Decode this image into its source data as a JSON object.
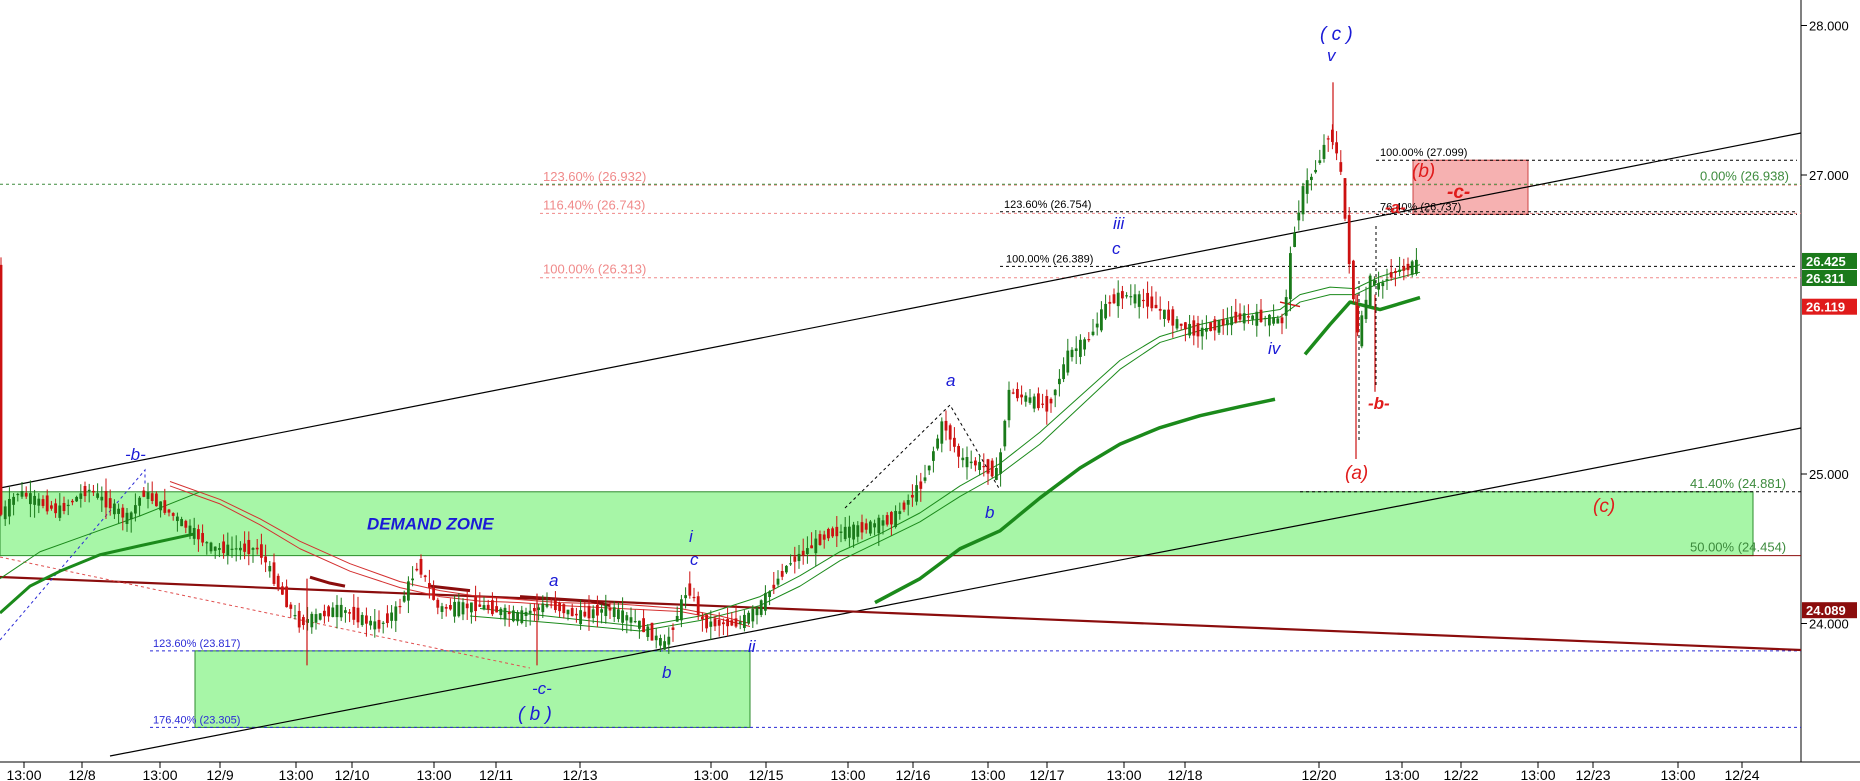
{
  "chart_data": {
    "type": "candlestick",
    "colors": {
      "up": "#1a7a1a",
      "down": "#cc1111",
      "blue_label": "#1a1ad6",
      "red_label": "#e01b1b",
      "fib_pink": "#f08a8a",
      "fib_green": "#3d8b3d",
      "zone_green": "#98f598",
      "zone_pink": "#f5a3a3",
      "ma_green": "#1b8a1b",
      "ma_red": "#d43030",
      "dark_red": "#8b0d0d"
    },
    "y_axis": {
      "ylim": [
        23.0,
        28.5
      ],
      "ticks": [
        {
          "value": 28.0,
          "label": "28.000"
        },
        {
          "value": 27.0,
          "label": "27.000"
        },
        {
          "value": 25.0,
          "label": "25.000"
        },
        {
          "value": 24.0,
          "label": "24.000"
        }
      ],
      "price_badges": [
        {
          "value": 26.425,
          "label": "26.425",
          "color": "#1b7a1b"
        },
        {
          "value": 26.311,
          "label": "26.311",
          "color": "#1b7a1b"
        },
        {
          "value": 26.119,
          "label": "26.119",
          "color": "#e01b1b"
        },
        {
          "value": 24.089,
          "label": "24.089",
          "color": "#8b0d0d"
        }
      ]
    },
    "x_axis": {
      "tick_labels": [
        "13:00",
        "12/8",
        "13:00",
        "12/9",
        "13:00",
        "12/10",
        "13:00",
        "12/11",
        "12/13",
        "13:00",
        "12/15",
        "13:00",
        "12/16",
        "13:00",
        "12/17",
        "13:00",
        "12/18",
        "12/20",
        "13:00",
        "12/22",
        "13:00",
        "12/23",
        "13:00",
        "12/24"
      ]
    },
    "zones": [
      {
        "label": "DEMAND ZONE",
        "from": 24.454,
        "to": 24.881
      },
      {
        "label": "",
        "from": 23.305,
        "to": 23.817
      },
      {
        "label": "",
        "from": 26.737,
        "to": 27.099
      }
    ],
    "fib_levels": [
      {
        "label": "123.60% (26.932)",
        "value": 26.932,
        "group": "pink"
      },
      {
        "label": "116.40% (26.743)",
        "value": 26.743,
        "group": "pink"
      },
      {
        "label": "100.00% (26.313)",
        "value": 26.313,
        "group": "pink"
      },
      {
        "label": "123.60% (26.754)",
        "value": 26.754,
        "group": "black"
      },
      {
        "label": "100.00% (26.389)",
        "value": 26.389,
        "group": "black"
      },
      {
        "label": "100.00% (27.099)",
        "value": 27.099,
        "group": "black"
      },
      {
        "label": "76.40% (26.737)",
        "value": 26.737,
        "group": "black"
      },
      {
        "label": "0.00% (26.938)",
        "value": 26.938,
        "group": "green"
      },
      {
        "label": "41.40% (24.881)",
        "value": 24.881,
        "group": "green"
      },
      {
        "label": "50.00% (24.454)",
        "value": 24.454,
        "group": "green"
      },
      {
        "label": "123.60% (23.817)",
        "value": 23.817,
        "group": "blue"
      },
      {
        "label": "176.40% (23.305)",
        "value": 23.305,
        "group": "blue"
      }
    ],
    "wave_labels": [
      {
        "text": "( c )",
        "color": "blue"
      },
      {
        "text": "v",
        "color": "blue"
      },
      {
        "text": "iii",
        "color": "blue"
      },
      {
        "text": "c",
        "color": "blue"
      },
      {
        "text": "iv",
        "color": "blue"
      },
      {
        "text": "a",
        "color": "blue"
      },
      {
        "text": "b",
        "color": "blue"
      },
      {
        "text": "-b-",
        "color": "blue"
      },
      {
        "text": "i",
        "color": "blue"
      },
      {
        "text": "c",
        "color": "blue"
      },
      {
        "text": "a",
        "color": "blue"
      },
      {
        "text": "ii",
        "color": "blue"
      },
      {
        "text": "b",
        "color": "blue"
      },
      {
        "text": "-c-",
        "color": "blue"
      },
      {
        "text": "( b )",
        "color": "blue"
      },
      {
        "text": "(b)",
        "color": "red"
      },
      {
        "text": "-c-",
        "color": "red"
      },
      {
        "text": "-a-",
        "color": "red"
      },
      {
        "text": "-b-",
        "color": "red"
      },
      {
        "text": "(a)",
        "color": "red"
      },
      {
        "text": "(c)",
        "color": "red"
      }
    ]
  }
}
